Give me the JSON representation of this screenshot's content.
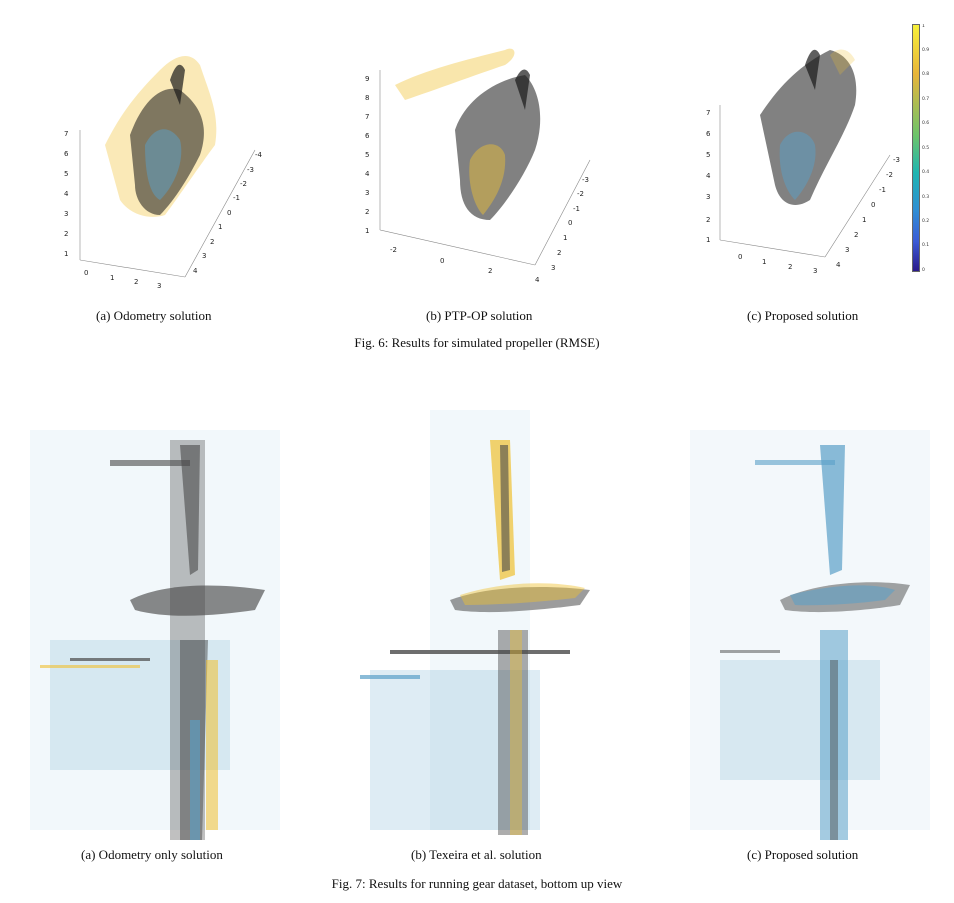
{
  "fig6": {
    "caption": "Fig. 6: Results for simulated propeller (RMSE)",
    "panels": [
      {
        "label": "(a) Odometry solution",
        "z_ticks": [
          "1",
          "2",
          "3",
          "4",
          "5",
          "6",
          "7"
        ],
        "x_ticks": [
          "0",
          "1",
          "2",
          "3"
        ],
        "y_ticks": [
          "-4",
          "-3",
          "-2",
          "-1",
          "0",
          "1",
          "2",
          "3",
          "4"
        ]
      },
      {
        "label": "(b) PTP-OP solution",
        "z_ticks": [
          "1",
          "2",
          "3",
          "4",
          "5",
          "6",
          "7",
          "8",
          "9"
        ],
        "x_ticks": [
          "-2",
          "0",
          "2",
          "4"
        ],
        "y_ticks": [
          "-3",
          "-2",
          "-1",
          "0",
          "1",
          "2",
          "3"
        ]
      },
      {
        "label": "(c) Proposed solution",
        "z_ticks": [
          "1",
          "2",
          "3",
          "4",
          "5",
          "6",
          "7"
        ],
        "x_ticks": [
          "0",
          "1",
          "2",
          "3"
        ],
        "y_ticks": [
          "-3",
          "-2",
          "-1",
          "0",
          "1",
          "2",
          "3",
          "4"
        ]
      }
    ],
    "colorbar": {
      "ticks": [
        "0",
        "0.1",
        "0.2",
        "0.3",
        "0.4",
        "0.5",
        "0.6",
        "0.7",
        "0.8",
        "0.9",
        "1"
      ],
      "colors": [
        "#2b1a8a",
        "#3b5bd6",
        "#2f8fd4",
        "#1fb5b0",
        "#6cc46b",
        "#e8b53a",
        "#f7f03a"
      ]
    }
  },
  "fig7": {
    "caption": "Fig. 7: Results for running gear dataset, bottom up view",
    "panels": [
      {
        "label": "(a) Odometry only solution"
      },
      {
        "label": "(b) Texeira et al. solution"
      },
      {
        "label": "(c) Proposed solution"
      }
    ]
  },
  "colors": {
    "gray": "#4a4a4a",
    "blue": "#5aa0c8",
    "yellow": "#f0c030",
    "black": "#1a1a1a"
  }
}
